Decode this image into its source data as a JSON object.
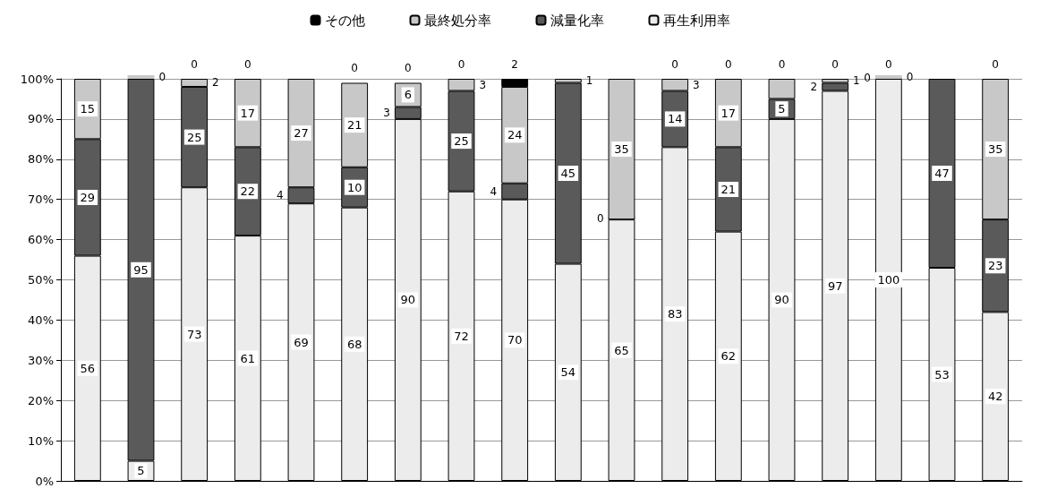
{
  "chart_data": {
    "type": "bar",
    "stacked": true,
    "categories": [
      null,
      null,
      null,
      null,
      null,
      null,
      null,
      null,
      null,
      null,
      null,
      null,
      null,
      null,
      null,
      null,
      null,
      null
    ],
    "series": [
      {
        "name": "再生利用率",
        "color": "#ececec",
        "values": [
          56,
          5,
          73,
          61,
          69,
          68,
          90,
          72,
          70,
          54,
          65,
          83,
          62,
          90,
          97,
          100,
          53,
          42
        ],
        "value_labels": [
          "56",
          "5",
          "73",
          "61",
          "69",
          "68",
          "90",
          "72",
          "70",
          "54",
          "65",
          "83",
          "62",
          "90",
          "97",
          "100",
          "53",
          "42"
        ]
      },
      {
        "name": "減量化率",
        "color": "#5a5a5a",
        "values": [
          29,
          95,
          25,
          22,
          4,
          10,
          3,
          25,
          4,
          45,
          0,
          14,
          21,
          5,
          2,
          0,
          47,
          23
        ],
        "value_labels": [
          "29",
          "95",
          "25",
          "22",
          "4",
          "10",
          "3",
          "25",
          "4",
          "45",
          "0",
          "14",
          "21",
          "5",
          "2",
          "0",
          "47",
          "23"
        ]
      },
      {
        "name": "最終処分率",
        "color": "#c8c8c8",
        "values": [
          15,
          0,
          2,
          17,
          27,
          21,
          6,
          3,
          24,
          1,
          35,
          3,
          17,
          5,
          1,
          0,
          null,
          35
        ],
        "value_labels": [
          "15",
          "0",
          "2",
          "17",
          "27",
          "21",
          "6",
          "3",
          "24",
          "1",
          "35",
          "3",
          "17",
          null,
          "1",
          "0",
          null,
          "35"
        ]
      },
      {
        "name": "その他",
        "color": "#000000",
        "values": [
          null,
          null,
          0,
          0,
          null,
          0,
          0,
          0,
          2,
          null,
          null,
          0,
          0,
          0,
          0,
          0,
          null,
          0
        ],
        "value_labels": [
          null,
          null,
          "0",
          "0",
          null,
          "0",
          "0",
          "0",
          "2",
          null,
          null,
          "0",
          "0",
          "0",
          "0",
          "0",
          null,
          "0"
        ]
      }
    ],
    "ylim": [
      0,
      100
    ],
    "yticks": [
      {
        "value": 0,
        "label": "0%"
      },
      {
        "value": 10,
        "label": "10%"
      },
      {
        "value": 20,
        "label": "20%"
      },
      {
        "value": 30,
        "label": "30%"
      },
      {
        "value": 40,
        "label": "40%"
      },
      {
        "value": 50,
        "label": "50%"
      },
      {
        "value": 60,
        "label": "60%"
      },
      {
        "value": 70,
        "label": "70%"
      },
      {
        "value": 80,
        "label": "80%"
      },
      {
        "value": 90,
        "label": "90%"
      },
      {
        "value": 100,
        "label": "100%"
      }
    ],
    "grid": "y",
    "legend": "top"
  }
}
